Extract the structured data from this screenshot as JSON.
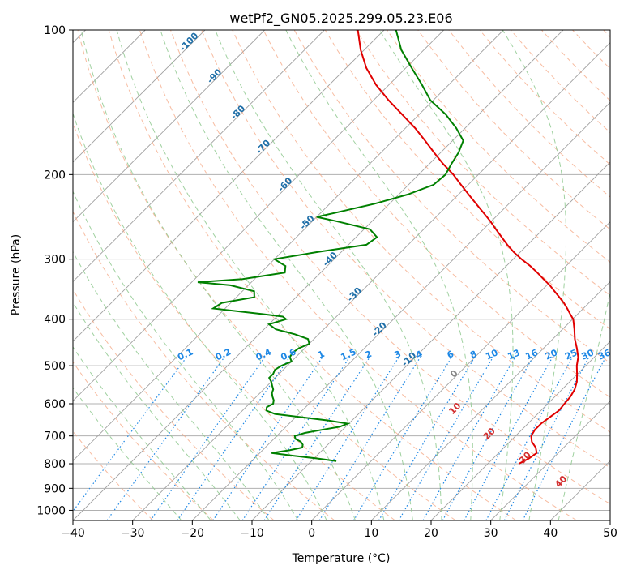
{
  "chart_data": {
    "type": "line",
    "title": "wetPf2_GN05.2025.299.05.23.E06",
    "xlabel": "Temperature (°C)",
    "ylabel": "Pressure (hPa)",
    "xlim": [
      -40,
      50
    ],
    "ylim": [
      1050,
      100
    ],
    "y_scale": "log",
    "x_ticks": [
      -40,
      -30,
      -20,
      -10,
      0,
      10,
      20,
      30,
      40,
      50
    ],
    "y_ticks": [
      100,
      200,
      300,
      400,
      500,
      600,
      700,
      800,
      900,
      1000
    ],
    "grid": true,
    "colors": {
      "temperature": "#e00000",
      "dewpoint": "#008000",
      "isotherm": "#a0a0a0",
      "dry_adiabat": "#f4a582",
      "moist_adiabat": "#8fc98f",
      "mixing_ratio": "#1e88e5",
      "mixing_label": "#1e88e5",
      "isotherm_label": "#1f6fa8",
      "dry_label": "#d32f2f",
      "zero_label": "#888888"
    },
    "series": [
      {
        "key": "temperature",
        "p": [
          800,
          780,
          760,
          740,
          720,
          700,
          680,
          660,
          640,
          620,
          600,
          580,
          560,
          540,
          520,
          500,
          480,
          460,
          440,
          420,
          400,
          390,
          380,
          370,
          360,
          350,
          340,
          330,
          320,
          310,
          300,
          290,
          280,
          270,
          260,
          250,
          240,
          230,
          220,
          210,
          200,
          190,
          180,
          170,
          160,
          150,
          140,
          130,
          120,
          110,
          100
        ],
        "t": [
          25.2,
          26.0,
          26.4,
          25.3,
          23.7,
          22.6,
          22.2,
          22.2,
          22.6,
          23.0,
          22.8,
          22.6,
          22.1,
          21.2,
          19.9,
          18.5,
          17.3,
          15.6,
          13.7,
          12.0,
          10.1,
          8.7,
          7.3,
          5.8,
          4.1,
          2.3,
          0.5,
          -1.6,
          -3.7,
          -6.0,
          -8.6,
          -11.1,
          -13.4,
          -15.6,
          -17.9,
          -20.2,
          -22.8,
          -25.5,
          -28.3,
          -31.2,
          -34.2,
          -37.7,
          -41.1,
          -44.6,
          -48.4,
          -52.8,
          -57.5,
          -62.2,
          -66.6,
          -70.6,
          -74.4
        ]
      },
      {
        "key": "dewpoint",
        "p": [
          790,
          780,
          770,
          760,
          750,
          740,
          730,
          720,
          710,
          700,
          690,
          680,
          670,
          660,
          650,
          640,
          630,
          620,
          610,
          600,
          590,
          580,
          570,
          560,
          550,
          540,
          530,
          520,
          510,
          500,
          490,
          480,
          470,
          460,
          450,
          440,
          430,
          420,
          410,
          400,
          395,
          390,
          380,
          370,
          360,
          350,
          340,
          335,
          330,
          320,
          310,
          300,
          290,
          280,
          270,
          260,
          250,
          245,
          240,
          230,
          220,
          210,
          200,
          190,
          180,
          170,
          160,
          150,
          140,
          130,
          120,
          110,
          100
        ],
        "td": [
          -5.8,
          -9.5,
          -13.8,
          -18.0,
          -15.5,
          -13.8,
          -14.2,
          -15.0,
          -16.4,
          -17.0,
          -15.8,
          -13.5,
          -11.0,
          -10.2,
          -14.0,
          -19.0,
          -24.0,
          -26.0,
          -26.5,
          -26.0,
          -26.5,
          -27.3,
          -28.0,
          -28.4,
          -29.2,
          -30.0,
          -31.0,
          -31.0,
          -31.4,
          -31.0,
          -30.0,
          -31.0,
          -31.3,
          -31.0,
          -30.0,
          -31.0,
          -34.0,
          -38.0,
          -40.0,
          -38.0,
          -39.0,
          -43.0,
          -52.0,
          -51.5,
          -47.0,
          -48.0,
          -53.0,
          -59.0,
          -52.0,
          -46.0,
          -47.0,
          -50.0,
          -44.0,
          -37.0,
          -36.5,
          -39.0,
          -46.0,
          -50.0,
          -47.5,
          -42.5,
          -38.5,
          -35.8,
          -35.5,
          -36.3,
          -37.0,
          -38.2,
          -41.5,
          -45.5,
          -50.5,
          -54.5,
          -59.0,
          -63.8,
          -68.0
        ]
      }
    ],
    "isotherm_labels": [
      -100,
      -90,
      -80,
      -70,
      -60,
      -50,
      -40,
      -30,
      -20,
      -10
    ],
    "zero_label": 0,
    "dry_adiabat_labels": [
      10,
      20,
      30,
      40
    ],
    "mixing_ratio_labels": [
      0.1,
      0.2,
      0.4,
      0.6,
      1,
      1.5,
      2,
      3,
      4,
      6,
      8,
      10,
      13,
      16,
      20,
      25,
      30,
      36
    ]
  }
}
